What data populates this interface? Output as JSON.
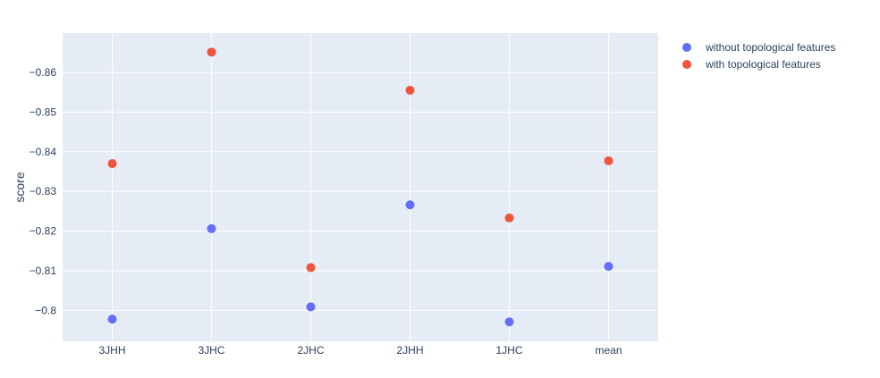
{
  "chart_data": {
    "type": "scatter",
    "categories": [
      "3JHH",
      "3JHC",
      "2JHC",
      "2JHH",
      "1JHC",
      "mean"
    ],
    "series": [
      {
        "name": "without topological features",
        "color": "#636efa",
        "values": [
          -0.7978,
          -0.8206,
          -0.8009,
          -0.8266,
          -0.7971,
          -0.8111
        ]
      },
      {
        "name": "with topological features",
        "color": "#ef553b",
        "values": [
          -0.837,
          -0.8651,
          -0.8108,
          -0.8555,
          -0.8233,
          -0.8377
        ]
      }
    ],
    "ylabel": "score",
    "xlabel": "",
    "ylim": [
      -0.7922,
      -0.8699
    ],
    "yticks": [
      -0.86,
      -0.85,
      -0.84,
      -0.83,
      -0.82,
      -0.81,
      -0.8
    ],
    "ytick_labels": [
      "−0.86",
      "−0.85",
      "−0.84",
      "−0.83",
      "−0.82",
      "−0.81",
      "−0.8"
    ],
    "grid": true,
    "legend_position": "top-right",
    "plot_background": "#e5ecf6"
  }
}
